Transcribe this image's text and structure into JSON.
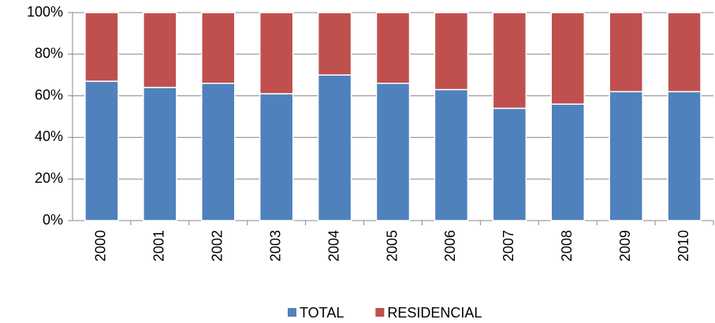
{
  "chart_data": {
    "type": "stacked-bar",
    "categories": [
      "2000",
      "2001",
      "2002",
      "2003",
      "2004",
      "2005",
      "2006",
      "2007",
      "2008",
      "2009",
      "2010"
    ],
    "series": [
      {
        "name": "TOTAL",
        "color": "#4f81bd",
        "values": [
          67,
          64,
          66,
          61,
          70,
          66,
          63,
          54,
          56,
          62,
          62
        ]
      },
      {
        "name": "RESIDENCIAL",
        "color": "#c0504d",
        "values": [
          33,
          36,
          34,
          39,
          30,
          34,
          37,
          46,
          44,
          38,
          38
        ]
      }
    ],
    "ylim": [
      0,
      100
    ],
    "yticks": [
      {
        "value": 0,
        "label": "0%"
      },
      {
        "value": 20,
        "label": "20%"
      },
      {
        "value": 40,
        "label": "40%"
      },
      {
        "value": 60,
        "label": "60%"
      },
      {
        "value": 80,
        "label": "80%"
      },
      {
        "value": 100,
        "label": "100%"
      }
    ],
    "grid": true,
    "legend": "bottom"
  }
}
